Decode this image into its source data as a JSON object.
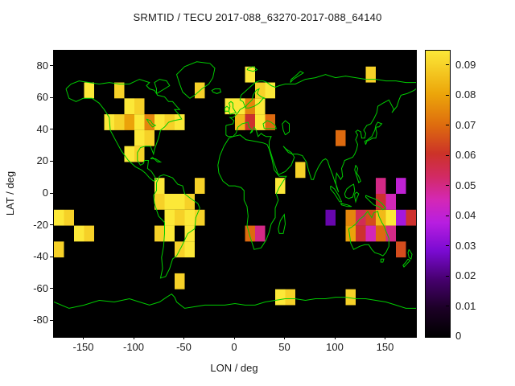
{
  "chart_data": {
    "type": "heatmap",
    "title": "SRMTID / TECU 2017-088_63270-2017-088_64140",
    "xlabel": "LON / deg",
    "ylabel": "LAT / deg",
    "xlim": [
      -180,
      180
    ],
    "ylim": [
      -90,
      90
    ],
    "grid": false,
    "legend_position": "right-colorbar",
    "xtick_values": [
      -150,
      -100,
      -50,
      0,
      50,
      100,
      150
    ],
    "xtick_labels": [
      "-150",
      "-100",
      "-50",
      "0",
      "50",
      "100",
      "150"
    ],
    "ytick_values": [
      80,
      60,
      40,
      20,
      0,
      -20,
      -40,
      -60,
      -80
    ],
    "ytick_labels": [
      "80",
      "60",
      "40",
      "20",
      "0",
      "-20",
      "-40",
      "-60",
      "-80"
    ],
    "cell_size_deg": 10,
    "plot_background": "#000000",
    "coastline_color": "#00cc00",
    "page_background": "#ffffff",
    "colorbar": {
      "min": 0,
      "max": 0.095,
      "tick_values": [
        0,
        0.01,
        0.02,
        0.03,
        0.04,
        0.05,
        0.06,
        0.07,
        0.08,
        0.09
      ],
      "tick_labels": [
        "0",
        "0.01",
        "0.02",
        "0.03",
        "0.04",
        "0.05",
        "0.06",
        "0.07",
        "0.08",
        "0.09"
      ]
    },
    "palette": [
      [
        0.0,
        "#000000"
      ],
      [
        0.1,
        "#1c0026"
      ],
      [
        0.2,
        "#46006e"
      ],
      [
        0.3,
        "#7a0ad2"
      ],
      [
        0.4,
        "#b81ee0"
      ],
      [
        0.48,
        "#d428b4"
      ],
      [
        0.56,
        "#d22a64"
      ],
      [
        0.64,
        "#cc3228"
      ],
      [
        0.74,
        "#de6c0e"
      ],
      [
        0.85,
        "#eca60a"
      ],
      [
        1.0,
        "#fce838"
      ]
    ],
    "cells": [
      [
        -150,
        60,
        0.095
      ],
      [
        -120,
        60,
        0.09
      ],
      [
        -40,
        60,
        0.09
      ],
      [
        10,
        70,
        0.095
      ],
      [
        20,
        60,
        0.09
      ],
      [
        30,
        60,
        0.095
      ],
      [
        130,
        70,
        0.09
      ],
      [
        -130,
        40,
        0.095
      ],
      [
        -120,
        40,
        0.09
      ],
      [
        -110,
        50,
        0.095
      ],
      [
        -110,
        40,
        0.08
      ],
      [
        -100,
        50,
        0.09
      ],
      [
        -100,
        40,
        0.095
      ],
      [
        -90,
        40,
        0.075
      ],
      [
        -80,
        40,
        0.095
      ],
      [
        -70,
        40,
        0.09
      ],
      [
        -60,
        40,
        0.095
      ],
      [
        -100,
        30,
        0.095
      ],
      [
        -90,
        30,
        0.09
      ],
      [
        -110,
        20,
        0.095
      ],
      [
        -100,
        20,
        0.09
      ],
      [
        -10,
        50,
        0.095
      ],
      [
        0,
        50,
        0.095
      ],
      [
        10,
        50,
        0.075
      ],
      [
        20,
        50,
        0.095
      ],
      [
        0,
        40,
        0.085
      ],
      [
        10,
        40,
        0.06
      ],
      [
        20,
        40,
        0.095
      ],
      [
        30,
        40,
        0.07
      ],
      [
        100,
        30,
        0.07
      ],
      [
        60,
        10,
        0.09
      ],
      [
        -40,
        0,
        0.09
      ],
      [
        40,
        0,
        0.095
      ],
      [
        10,
        -30,
        0.07
      ],
      [
        20,
        -30,
        0.05
      ],
      [
        -80,
        0,
        0.095
      ],
      [
        -80,
        -10,
        0.09
      ],
      [
        -70,
        -10,
        0.095
      ],
      [
        -60,
        -10,
        0.095
      ],
      [
        -50,
        -10,
        0.09
      ],
      [
        -70,
        -20,
        0.095
      ],
      [
        -60,
        -20,
        0.09
      ],
      [
        -50,
        -20,
        0.095
      ],
      [
        -40,
        -20,
        0.09
      ],
      [
        -80,
        -30,
        0.09
      ],
      [
        -70,
        -30,
        0.095
      ],
      [
        -50,
        -30,
        0.095
      ],
      [
        -60,
        -40,
        0.09
      ],
      [
        -50,
        -40,
        0.095
      ],
      [
        -180,
        -20,
        0.095
      ],
      [
        -170,
        -20,
        0.09
      ],
      [
        -160,
        -30,
        0.095
      ],
      [
        -150,
        -30,
        0.09
      ],
      [
        -180,
        -40,
        0.09
      ],
      [
        90,
        -20,
        0.025
      ],
      [
        110,
        -20,
        0.075
      ],
      [
        120,
        -20,
        0.055
      ],
      [
        130,
        -20,
        0.065
      ],
      [
        140,
        -20,
        0.085
      ],
      [
        150,
        -20,
        0.095
      ],
      [
        110,
        -30,
        0.08
      ],
      [
        120,
        -30,
        0.06
      ],
      [
        130,
        -30,
        0.045
      ],
      [
        140,
        -30,
        0.07
      ],
      [
        150,
        -30,
        0.05
      ],
      [
        140,
        -10,
        0.06
      ],
      [
        160,
        -20,
        0.035
      ],
      [
        170,
        -20,
        0.06
      ],
      [
        160,
        -40,
        0.065
      ],
      [
        140,
        0,
        0.05
      ],
      [
        150,
        -10,
        0.045
      ],
      [
        160,
        0,
        0.04
      ],
      [
        -60,
        -60,
        0.09
      ],
      [
        40,
        -70,
        0.095
      ],
      [
        50,
        -70,
        0.09
      ],
      [
        110,
        -70,
        0.09
      ]
    ]
  }
}
